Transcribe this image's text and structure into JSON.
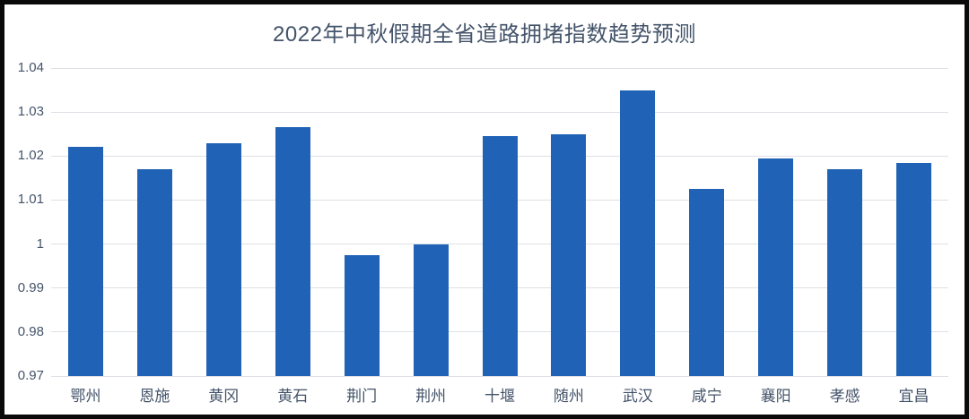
{
  "window": {
    "background_color": "#ffffff",
    "frame_color": "#0a0a0a"
  },
  "chart_data": {
    "type": "bar",
    "title": "2022年中秋假期全省道路拥堵指数趋势预测",
    "categories": [
      "鄂州",
      "恩施",
      "黄冈",
      "黄石",
      "荆门",
      "荆州",
      "十堰",
      "随州",
      "武汉",
      "咸宁",
      "襄阳",
      "孝感",
      "宜昌"
    ],
    "values": [
      1.022,
      1.017,
      1.023,
      1.0265,
      0.9975,
      1.0,
      1.0245,
      1.025,
      1.035,
      1.0125,
      1.0195,
      1.017,
      1.0185
    ],
    "xlabel": "",
    "ylabel": "",
    "ylim": [
      0.97,
      1.04
    ],
    "ytick_step": 0.01,
    "ytick_labels": [
      "0.97",
      "0.98",
      "0.99",
      "1",
      "1.01",
      "1.02",
      "1.03",
      "1.04"
    ],
    "grid": true,
    "legend": false,
    "bar_color": "#2063B6",
    "title_color": "#44546A",
    "axis_label_color": "#44546A",
    "gridline_color": "#dde1e6"
  }
}
